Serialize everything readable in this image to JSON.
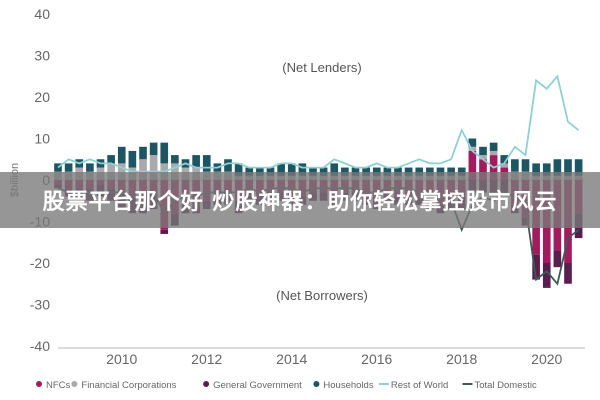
{
  "overlay": {
    "text": "股票平台那个好 炒股神器：助你轻松掌控股市风云"
  },
  "chart_data": {
    "type": "bar",
    "stacked": true,
    "ylabel": "$billion",
    "ylim": [
      -40,
      40
    ],
    "yticks": [
      40,
      30,
      20,
      10,
      0,
      -10,
      -20,
      -30,
      -40
    ],
    "xlim": [
      2008.5,
      2020.9
    ],
    "xticks": [
      "2010",
      "2012",
      "2014",
      "2016",
      "2018",
      "2020"
    ],
    "annotations": {
      "top": "(Net Lenders)",
      "bottom": "(Net Borrowers)"
    },
    "categories": [
      "2008.50",
      "2008.75",
      "2009.00",
      "2009.25",
      "2009.50",
      "2009.75",
      "2010.00",
      "2010.25",
      "2010.50",
      "2010.75",
      "2011.00",
      "2011.25",
      "2011.50",
      "2011.75",
      "2012.00",
      "2012.25",
      "2012.50",
      "2012.75",
      "2013.00",
      "2013.25",
      "2013.50",
      "2013.75",
      "2014.00",
      "2014.25",
      "2014.50",
      "2014.75",
      "2015.00",
      "2015.25",
      "2015.50",
      "2015.75",
      "2016.00",
      "2016.25",
      "2016.50",
      "2016.75",
      "2017.00",
      "2017.25",
      "2017.50",
      "2017.75",
      "2018.00",
      "2018.25",
      "2018.50",
      "2018.75",
      "2019.00",
      "2019.25",
      "2019.50",
      "2019.75",
      "2020.00",
      "2020.25",
      "2020.50",
      "2020.75"
    ],
    "series": [
      {
        "name": "NFCs",
        "color": "#a21b5e",
        "kind": "bar",
        "values": [
          -1,
          -2,
          -2,
          -2,
          -1,
          -2,
          -3,
          -4,
          -5,
          -4,
          -12,
          -8,
          -6,
          -6,
          -5,
          -4,
          -4,
          -5,
          -3,
          -4,
          -3,
          -3,
          -4,
          -4,
          -3,
          -3,
          -4,
          -3,
          -3,
          -4,
          -5,
          -3,
          -4,
          -4,
          -4,
          -5,
          -6,
          -5,
          -4,
          7,
          5,
          6,
          3,
          -6,
          -9,
          -18,
          -20,
          -17,
          -20,
          -8
        ]
      },
      {
        "name": "Financial Corporations",
        "color": "#aaaaae",
        "kind": "bar",
        "values": [
          2,
          2,
          3,
          2,
          3,
          4,
          4,
          3,
          5,
          6,
          4,
          4,
          3,
          3,
          2,
          2,
          2,
          1,
          1,
          1,
          1,
          1,
          1,
          1,
          1,
          1,
          1,
          1,
          1,
          1,
          1,
          1,
          1,
          1,
          1,
          1,
          1,
          1,
          1,
          1,
          1,
          1,
          1,
          2,
          2,
          1,
          1,
          1,
          1,
          1
        ]
      },
      {
        "name": "General Government",
        "color": "#5a1e4e",
        "kind": "bar",
        "values": [
          -1,
          -2,
          -2,
          -3,
          -3,
          -3,
          -4,
          -4,
          -3,
          -3,
          -1,
          -3,
          -2,
          -2,
          -2,
          -2,
          -2,
          -3,
          -2,
          -2,
          -2,
          -2,
          -2,
          -2,
          -2,
          -2,
          -2,
          -2,
          -2,
          -2,
          -2,
          -2,
          -2,
          -2,
          -2,
          -2,
          -2,
          -2,
          -3,
          -3,
          -3,
          -3,
          -3,
          -2,
          -2,
          -6,
          -6,
          -4,
          -5,
          -6
        ]
      },
      {
        "name": "Households",
        "color": "#1d5563",
        "kind": "bar",
        "values": [
          2,
          2,
          2,
          2,
          2,
          2,
          4,
          4,
          3,
          3,
          5,
          2,
          2,
          3,
          4,
          2,
          3,
          3,
          2,
          2,
          2,
          3,
          3,
          3,
          2,
          2,
          3,
          2,
          2,
          2,
          2,
          2,
          2,
          2,
          2,
          2,
          2,
          2,
          2,
          2,
          2,
          2,
          2,
          3,
          3,
          3,
          3,
          4,
          4,
          4
        ]
      },
      {
        "name": "Rest of World",
        "color": "#8fd0d3",
        "kind": "line",
        "values": [
          3,
          5,
          4,
          5,
          4,
          4,
          3,
          2,
          2,
          2,
          2,
          3,
          4,
          3,
          3,
          3,
          4,
          4,
          3,
          3,
          3,
          4,
          4,
          3,
          3,
          3,
          5,
          4,
          3,
          3,
          4,
          3,
          3,
          4,
          5,
          4,
          4,
          5,
          12,
          7,
          5,
          3,
          4,
          8,
          6,
          24,
          22,
          25,
          14,
          12
        ]
      },
      {
        "name": "Total Domestic",
        "color": "#3b5a55",
        "kind": "line",
        "values": [
          -2,
          -3,
          -3,
          -3,
          -3,
          -3,
          -3,
          -4,
          -4,
          -3,
          -8,
          -5,
          -4,
          -4,
          -3,
          -3,
          -3,
          -3,
          -2,
          -3,
          -2,
          -2,
          -2,
          -3,
          -2,
          -2,
          -2,
          -2,
          -2,
          -3,
          -3,
          -2,
          -2,
          -2,
          -3,
          -3,
          -4,
          -5,
          -12,
          -6,
          -4,
          -5,
          -3,
          -4,
          -6,
          -24,
          -22,
          -25,
          -14,
          -12
        ]
      }
    ],
    "legend": {
      "placement": "bottom",
      "entries": [
        "NFCs",
        "Financial Corporations",
        "General Government",
        "Households",
        "Rest of World",
        "Total Domestic"
      ]
    },
    "grid": false
  }
}
